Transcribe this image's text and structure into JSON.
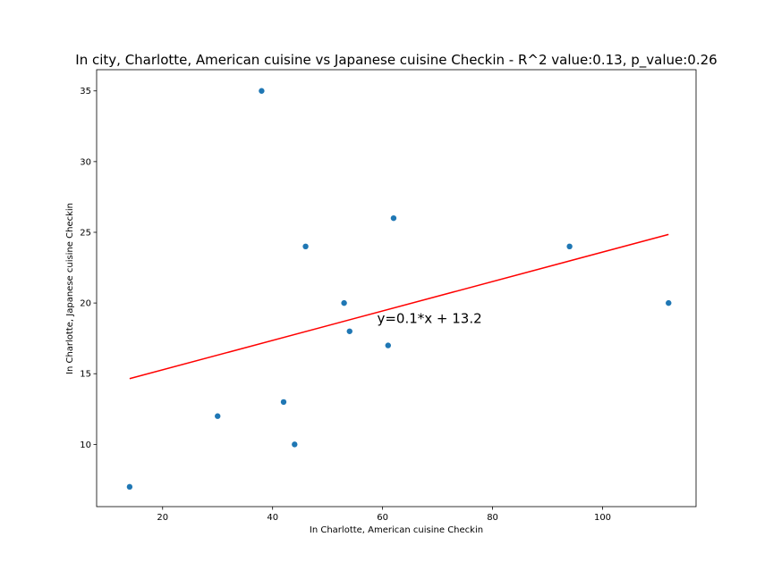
{
  "chart_data": {
    "type": "scatter",
    "title": "In city, Charlotte, American cuisine vs Japanese cuisine Checkin - R^2 value:0.13, p_value:0.26",
    "xlabel": "In Charlotte, American cuisine Checkin",
    "ylabel": "In Charlotte, Japanese cuisine Checkin",
    "xlim": [
      8,
      117
    ],
    "ylim": [
      5.6,
      36.5
    ],
    "xticks": [
      20,
      40,
      60,
      80,
      100
    ],
    "yticks": [
      10,
      15,
      20,
      25,
      30,
      35
    ],
    "grid": false,
    "points": [
      {
        "x": 14,
        "y": 7
      },
      {
        "x": 30,
        "y": 12
      },
      {
        "x": 38,
        "y": 35
      },
      {
        "x": 42,
        "y": 13
      },
      {
        "x": 44,
        "y": 10
      },
      {
        "x": 46,
        "y": 24
      },
      {
        "x": 53,
        "y": 20
      },
      {
        "x": 54,
        "y": 18
      },
      {
        "x": 61,
        "y": 17
      },
      {
        "x": 62,
        "y": 26
      },
      {
        "x": 94,
        "y": 24
      },
      {
        "x": 112,
        "y": 20
      }
    ],
    "fit_line": {
      "x_start": 14,
      "y_start": 14.65,
      "x_end": 112,
      "y_end": 24.85
    },
    "annotation": {
      "text": "y=0.1*x + 13.2",
      "x": 59,
      "y": 18.6
    },
    "point_color": "#1f77b4",
    "line_color": "#ff0000"
  }
}
